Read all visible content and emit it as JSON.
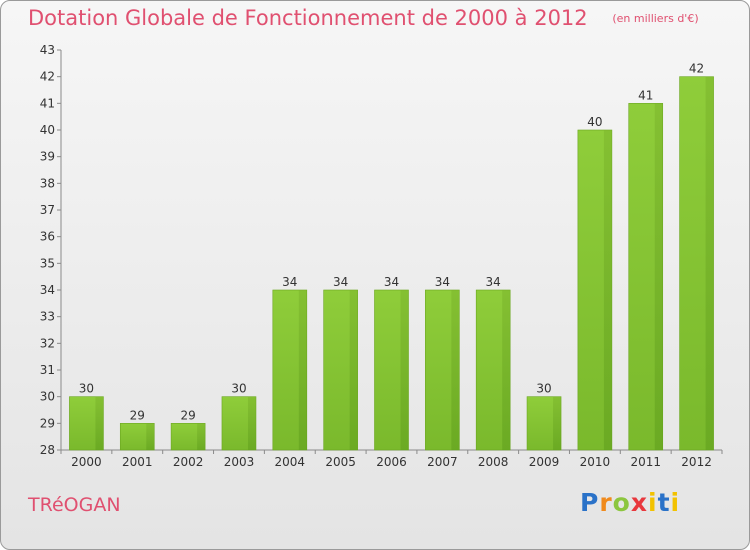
{
  "title": "Dotation Globale de Fonctionnement de 2000 à 2012",
  "unit_note": "(en milliers d'€)",
  "commune": "TRéOGAN",
  "brand": "Proxiti",
  "colors": {
    "bar": "#7ab92c",
    "title": "#e05070"
  },
  "chart_data": {
    "type": "bar",
    "title": "Dotation Globale de Fonctionnement de 2000 à 2012",
    "categories": [
      "2000",
      "2001",
      "2002",
      "2003",
      "2004",
      "2005",
      "2006",
      "2007",
      "2008",
      "2009",
      "2010",
      "2011",
      "2012"
    ],
    "values": [
      30,
      29,
      29,
      30,
      34,
      34,
      34,
      34,
      34,
      30,
      40,
      41,
      42
    ],
    "ylim": [
      28,
      43
    ],
    "yticks": [
      28,
      29,
      30,
      31,
      32,
      33,
      34,
      35,
      36,
      37,
      38,
      39,
      40,
      41,
      42,
      43
    ],
    "xlabel": "",
    "ylabel": "",
    "grid": false
  }
}
